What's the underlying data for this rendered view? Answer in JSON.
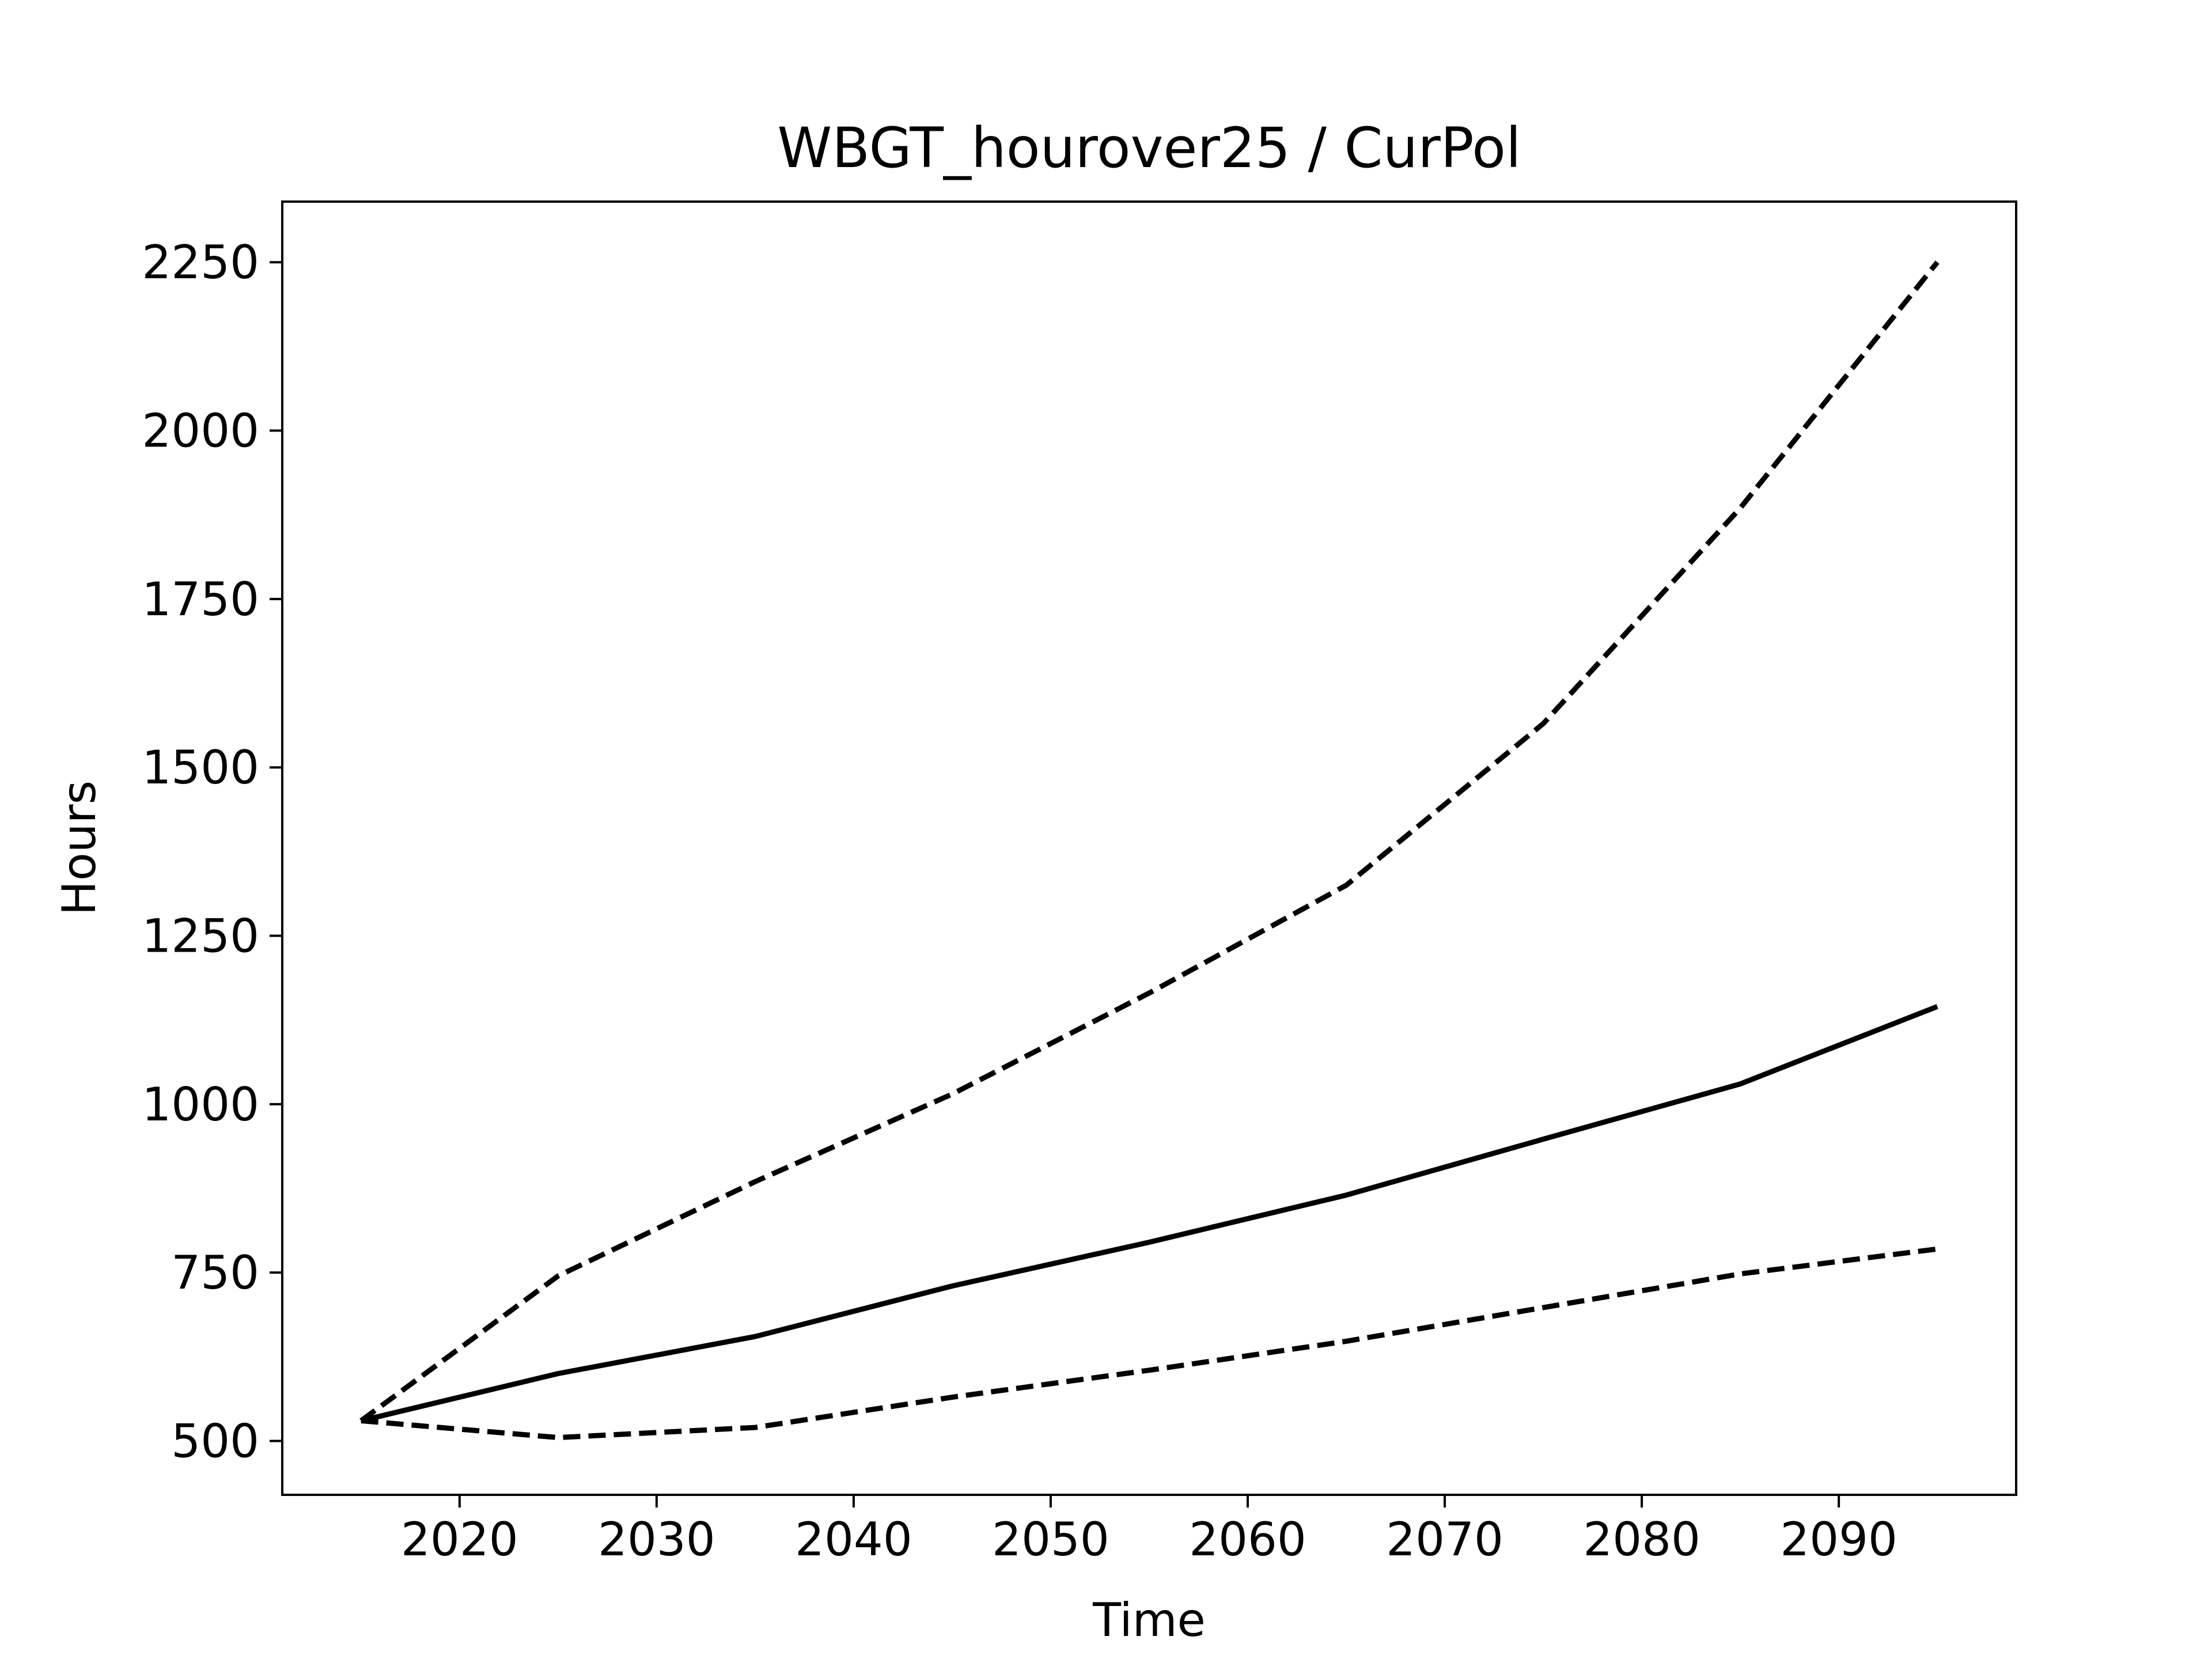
{
  "chart_data": {
    "type": "line",
    "title": "WBGT_hourover25 / CurPol",
    "xlabel": "Time",
    "ylabel": "Hours",
    "xlim": [
      2011,
      2099
    ],
    "ylim": [
      420,
      2340
    ],
    "xticks": [
      2020,
      2030,
      2040,
      2050,
      2060,
      2070,
      2080,
      2090
    ],
    "yticks": [
      500,
      750,
      1000,
      1250,
      1500,
      1750,
      2000,
      2250
    ],
    "grid": false,
    "legend": "none",
    "x": [
      2015,
      2025,
      2035,
      2045,
      2055,
      2065,
      2075,
      2085,
      2095
    ],
    "series": [
      {
        "style": "solid",
        "color": "#000000",
        "values": [
          530,
          600,
          655,
          730,
          795,
          865,
          948,
          1030,
          1145
        ]
      },
      {
        "style": "dashed",
        "color": "#000000",
        "values": [
          530,
          745,
          885,
          1015,
          1165,
          1325,
          1565,
          1885,
          2250
        ]
      },
      {
        "style": "dashed",
        "color": "#000000",
        "values": [
          530,
          505,
          520,
          565,
          605,
          648,
          698,
          748,
          785
        ]
      }
    ]
  }
}
